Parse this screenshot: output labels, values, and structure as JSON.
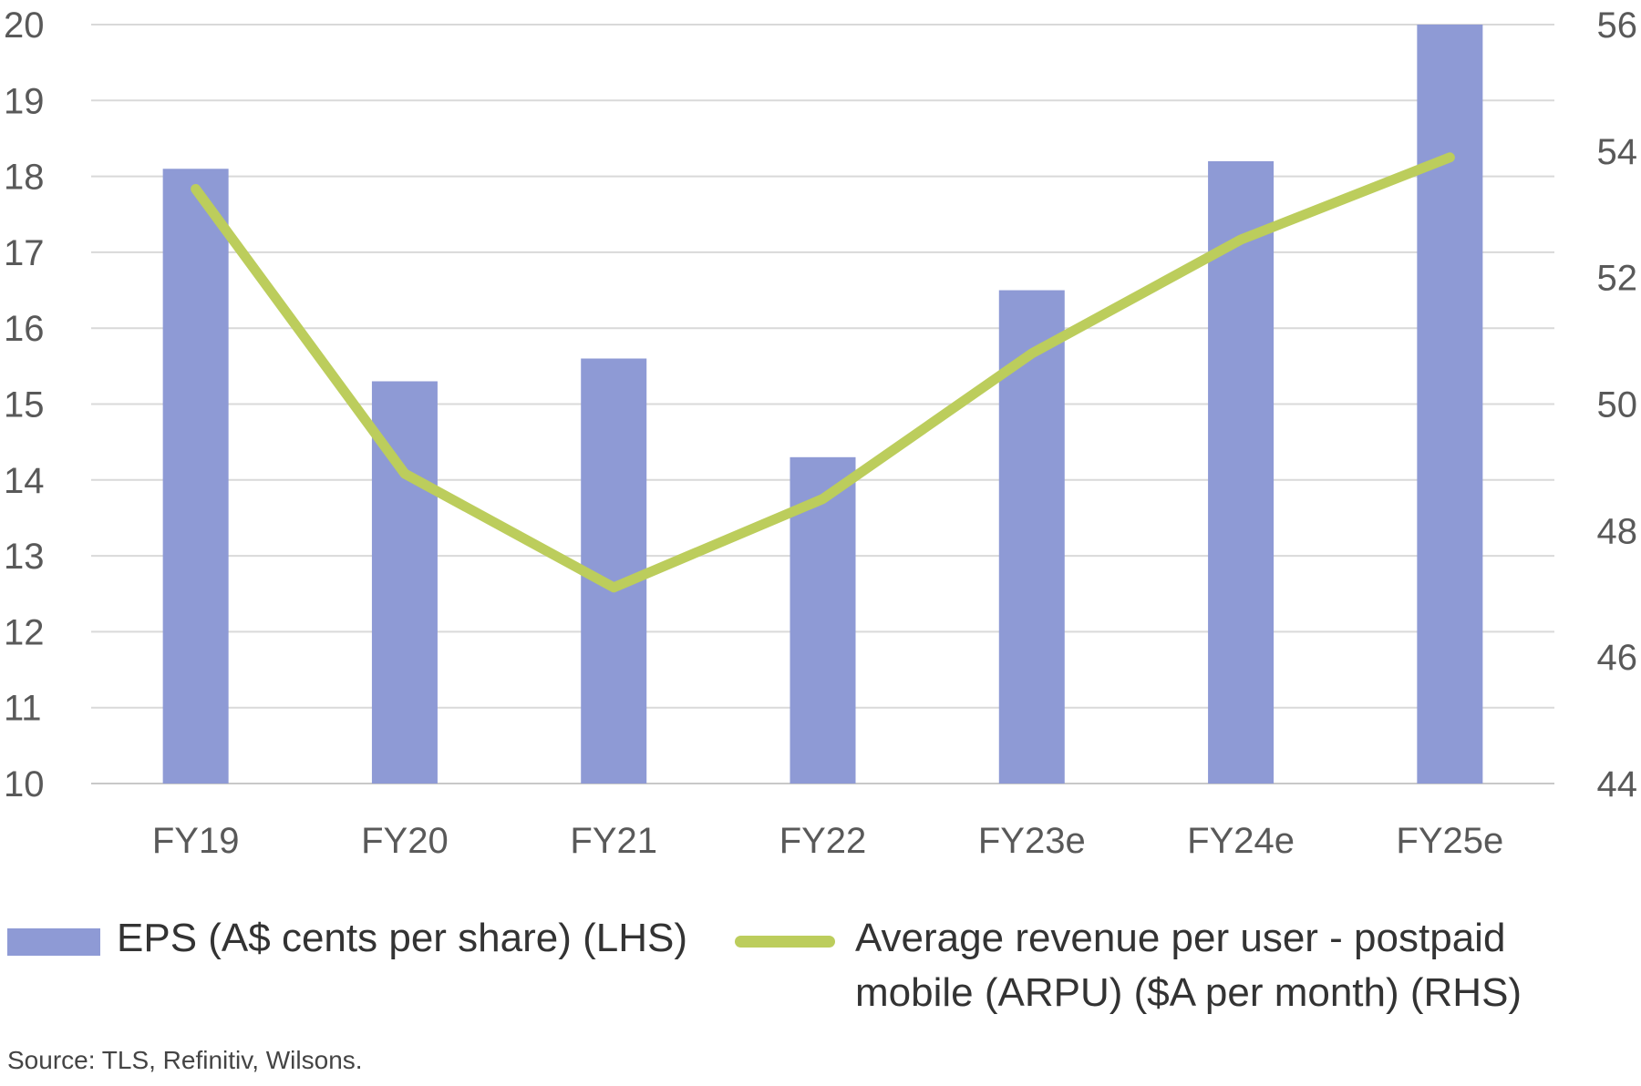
{
  "chart_data": {
    "type": "bar",
    "categories": [
      "FY19",
      "FY20",
      "FY21",
      "FY22",
      "FY23e",
      "FY24e",
      "FY25e"
    ],
    "series": [
      {
        "name": "EPS (A$ cents per share) (LHS)",
        "type": "bar",
        "axis": "left",
        "color": "#8e9ad5",
        "values": [
          18.1,
          15.3,
          15.6,
          14.3,
          16.5,
          18.2,
          20.0
        ]
      },
      {
        "name": "Average revenue per user - postpaid mobile (ARPU) ($A per month) (RHS)",
        "type": "line",
        "axis": "right",
        "color": "#bccd5c",
        "values": [
          53.4,
          48.9,
          47.1,
          48.5,
          50.8,
          52.6,
          53.9
        ]
      }
    ],
    "y_left": {
      "min": 10,
      "max": 20,
      "ticks": [
        10,
        11,
        12,
        13,
        14,
        15,
        16,
        17,
        18,
        19,
        20
      ]
    },
    "y_right": {
      "min": 44,
      "max": 56,
      "ticks": [
        44,
        46,
        48,
        50,
        52,
        54,
        56
      ]
    },
    "grid": true,
    "legend_position": "bottom"
  },
  "legend": {
    "eps_label": "EPS (A$ cents per share) (LHS)",
    "arpu_label_line1": "Average revenue per user - postpaid",
    "arpu_label_line2": "mobile (ARPU) ($A per month) (RHS)"
  },
  "source": "Source: TLS, Refinitiv, Wilsons."
}
